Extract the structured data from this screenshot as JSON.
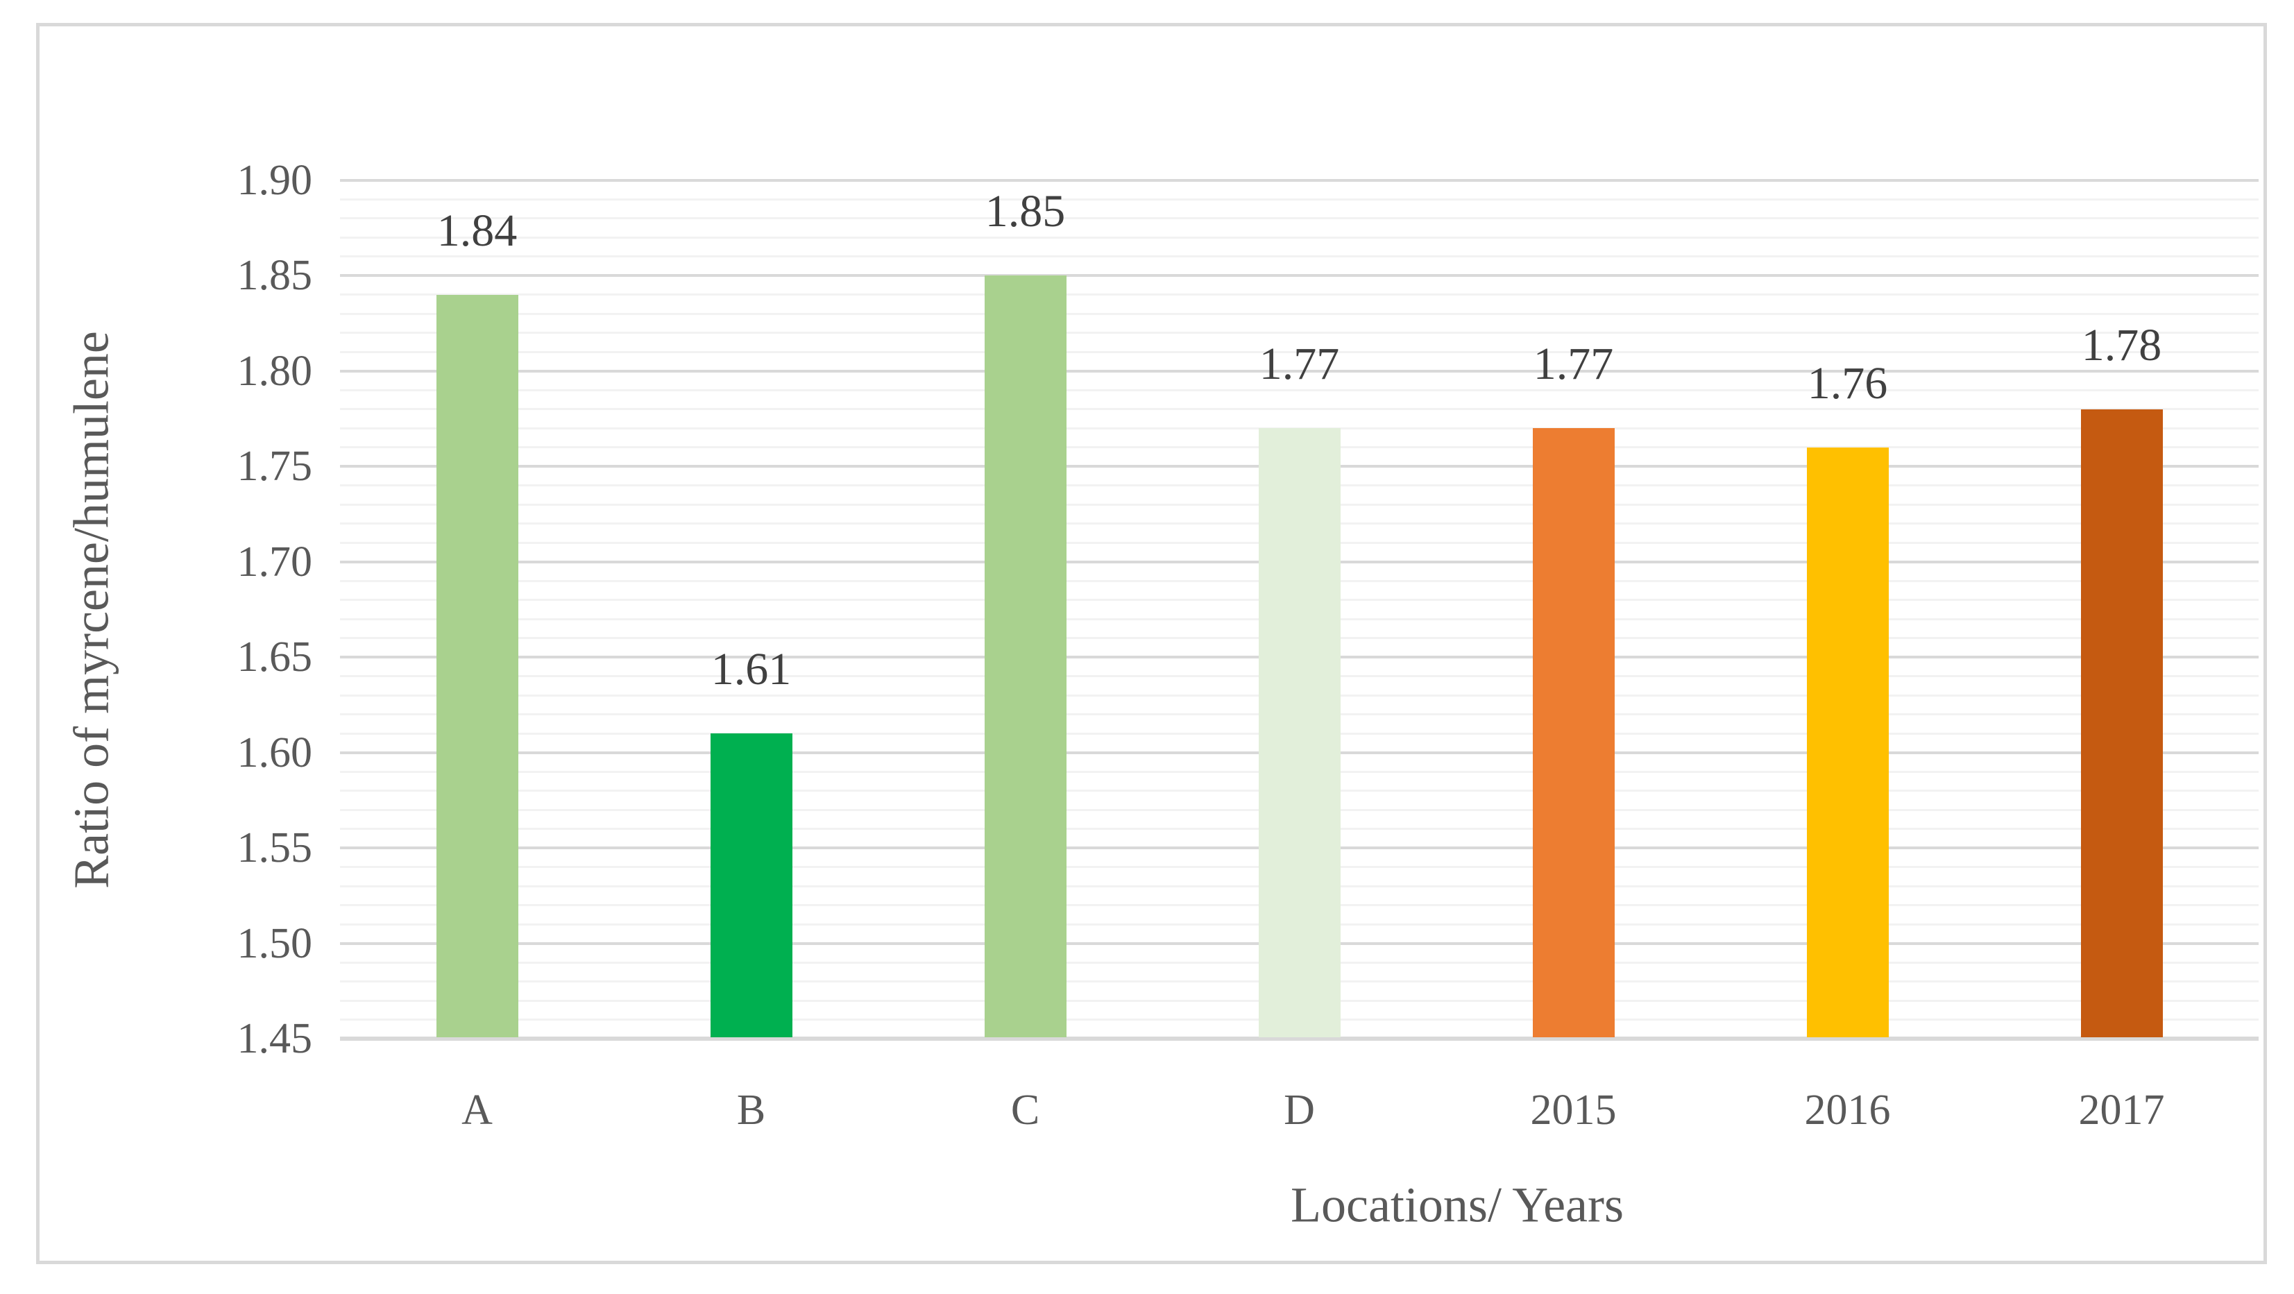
{
  "figure": {
    "background": "#FFFFFF",
    "border_color": "#D9D9D9"
  },
  "colors": {
    "axis_text": "#595959",
    "data_label_text": "#404040",
    "major_grid": "#D9D9D9",
    "minor_grid": "#F2F2F2",
    "baseline": "#D9D9D9"
  },
  "chart_data": {
    "type": "bar",
    "title": "",
    "xlabel": "Locations/ Years",
    "ylabel": "Ratio of myrcene/humulene",
    "categories": [
      "A",
      "B",
      "C",
      "D",
      "2015",
      "2016",
      "2017"
    ],
    "values": [
      1.84,
      1.61,
      1.85,
      1.77,
      1.77,
      1.76,
      1.78
    ],
    "data_labels": [
      "1.84",
      "1.61",
      "1.85",
      "1.77",
      "1.77",
      "1.76",
      "1.78"
    ],
    "bar_colors": [
      "#A9D18E",
      "#00B050",
      "#A9D18E",
      "#E2EFDA",
      "#ED7D31",
      "#FFC000",
      "#C55A11"
    ],
    "ylim": [
      1.45,
      1.9
    ],
    "y_major_step": 0.05,
    "y_minor_step": 0.01,
    "y_tick_labels": [
      "1.45",
      "1.50",
      "1.55",
      "1.60",
      "1.65",
      "1.70",
      "1.75",
      "1.80",
      "1.85",
      "1.90"
    ],
    "grid": true,
    "legend_position": "none"
  }
}
